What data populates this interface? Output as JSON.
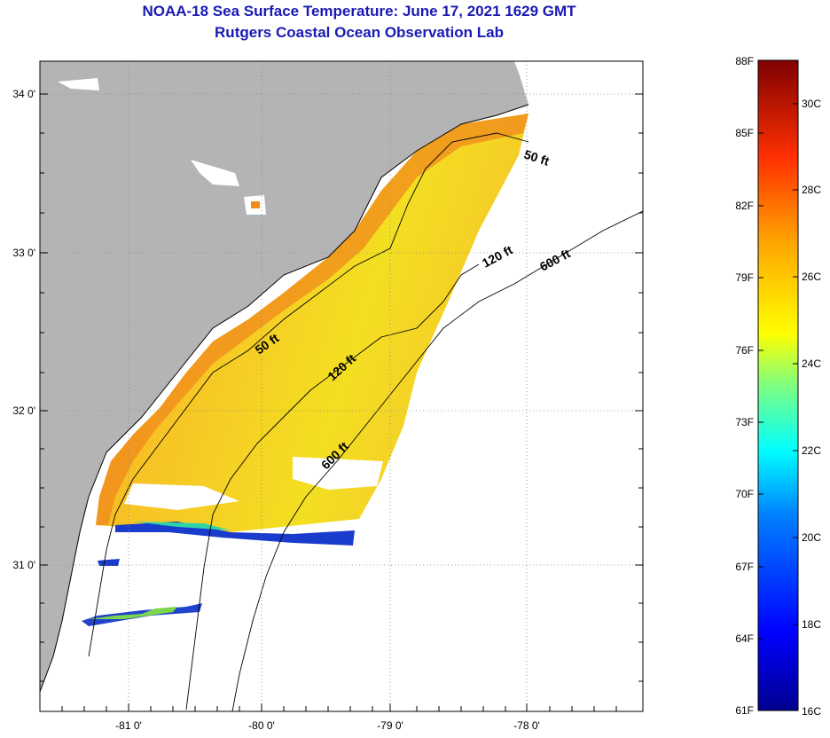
{
  "title": {
    "line1": "NOAA-18 Sea Surface Temperature:  June 17, 2021 1629 GMT",
    "line2": "Rutgers Coastal Ocean Observation Lab"
  },
  "axes": {
    "lon_ticks": [
      "-81 0'",
      "-80 0'",
      "-79 0'",
      "-78 0'"
    ],
    "lat_ticks": [
      "34 0'",
      "33 0'",
      "32 0'",
      "31 0'"
    ]
  },
  "contours": [
    "50 ft",
    "120 ft",
    "600 ft",
    "50 ft",
    "120 ft",
    "600 ft"
  ],
  "colorbar": {
    "fahrenheit": [
      "88F",
      "85F",
      "82F",
      "79F",
      "76F",
      "73F",
      "70F",
      "67F",
      "64F",
      "61F"
    ],
    "celsius": [
      "30C",
      "28C",
      "26C",
      "24C",
      "22C",
      "20C",
      "18C",
      "16C"
    ]
  },
  "colors": {
    "land": "#b4b4b4",
    "sst_warm": "#f5a623",
    "sst_mid": "#f2dc1e",
    "sst_cold": "#1a3ccc",
    "title": "#1a1ab4"
  }
}
